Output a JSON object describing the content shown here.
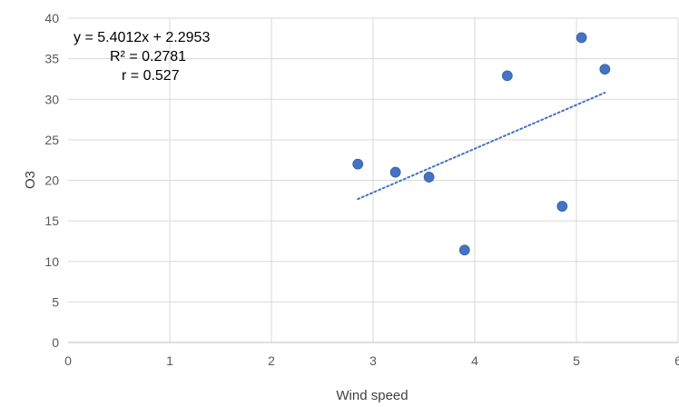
{
  "chart_data": {
    "type": "scatter",
    "title": "",
    "xlabel": "Wind speed",
    "ylabel": "O3",
    "xlim": [
      0,
      6
    ],
    "ylim": [
      0,
      40
    ],
    "x_ticks": [
      "0",
      "1",
      "2",
      "3",
      "4",
      "5",
      "6"
    ],
    "y_ticks": [
      "0",
      "5",
      "10",
      "15",
      "20",
      "25",
      "30",
      "35",
      "40"
    ],
    "grid": true,
    "legend": "none",
    "series": [
      {
        "color": "#4472C4",
        "points": [
          {
            "x": 2.85,
            "y": 22.0
          },
          {
            "x": 3.22,
            "y": 21.0
          },
          {
            "x": 3.55,
            "y": 20.4
          },
          {
            "x": 3.9,
            "y": 11.4
          },
          {
            "x": 4.32,
            "y": 32.9
          },
          {
            "x": 4.86,
            "y": 16.8
          },
          {
            "x": 5.05,
            "y": 37.6
          },
          {
            "x": 5.28,
            "y": 33.7
          }
        ]
      }
    ],
    "trendline": {
      "kind": "linear",
      "slope": 5.4012,
      "intercept": 2.2953,
      "x_range": [
        2.85,
        5.28
      ],
      "color": "#4472C4",
      "style": "dotted"
    },
    "annotation": {
      "line1": "y = 5.4012x + 2.2953",
      "line2": "R² = 0.2781",
      "line3": "r = 0.527"
    }
  }
}
